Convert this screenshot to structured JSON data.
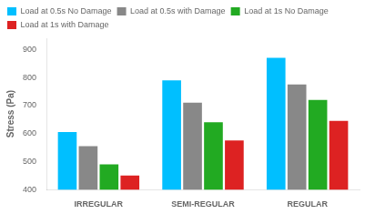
{
  "chart_data": {
    "type": "bar",
    "categories": [
      "IRREGULAR",
      "SEMI-REGULAR",
      "REGULAR"
    ],
    "series": [
      {
        "name": "Load at 0.5s No Damage",
        "color": "#00BFFF",
        "values": [
          605,
          790,
          870
        ]
      },
      {
        "name": "Load at 0.5s with Damage",
        "color": "#888888",
        "values": [
          555,
          710,
          775
        ]
      },
      {
        "name": "Load at 1s No Damage",
        "color": "#22AA22",
        "values": [
          490,
          640,
          720
        ]
      },
      {
        "name": "Load at 1s with Damage",
        "color": "#DD2222",
        "values": [
          450,
          575,
          645
        ]
      }
    ],
    "ylabel": "Stress (Pa)",
    "ylim": [
      400,
      940
    ],
    "yticks": [
      400,
      500,
      600,
      700,
      800,
      900
    ],
    "grid": false,
    "legend": "upper left"
  }
}
